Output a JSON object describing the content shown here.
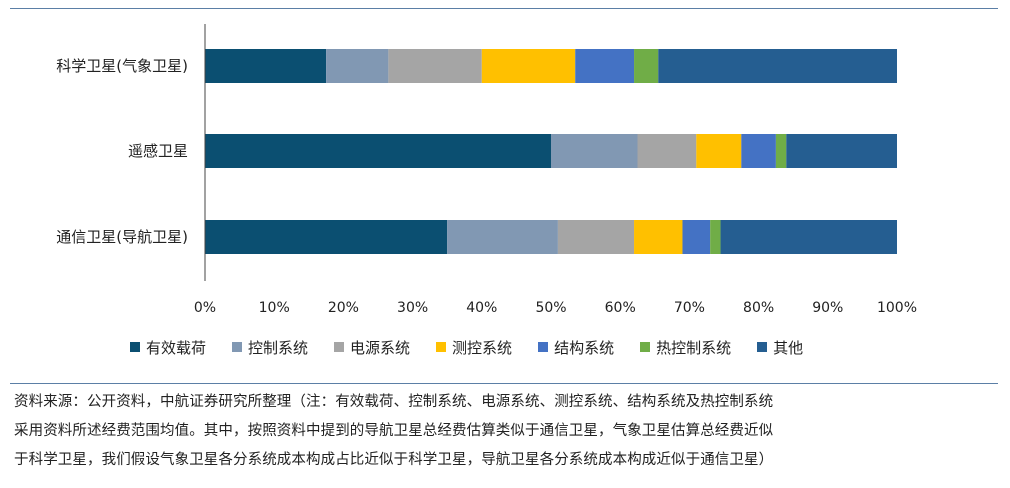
{
  "chart_data": {
    "type": "bar",
    "orientation": "horizontal",
    "stacked": true,
    "categories": [
      "科学卫星(气象卫星)",
      "遥感卫星",
      "通信卫星(导航卫星)"
    ],
    "series": [
      {
        "name": "有效载荷",
        "color": "#0b4f71",
        "values": [
          17.5,
          50.0,
          35.0
        ]
      },
      {
        "name": "控制系统",
        "color": "#8198b3",
        "values": [
          9.0,
          12.5,
          16.0
        ]
      },
      {
        "name": "电源系统",
        "color": "#a5a5a5",
        "values": [
          13.5,
          8.5,
          11.0
        ]
      },
      {
        "name": "测控系统",
        "color": "#ffc000",
        "values": [
          13.5,
          6.5,
          7.0
        ]
      },
      {
        "name": "结构系统",
        "color": "#4472c4",
        "values": [
          8.5,
          5.0,
          4.0
        ]
      },
      {
        "name": "热控制系统",
        "color": "#70ad47",
        "values": [
          3.5,
          1.5,
          1.5
        ]
      },
      {
        "name": "其他",
        "color": "#255e91",
        "values": [
          34.5,
          16.0,
          25.5
        ]
      }
    ],
    "x_ticks": [
      "0%",
      "10%",
      "20%",
      "30%",
      "40%",
      "50%",
      "60%",
      "70%",
      "80%",
      "90%",
      "100%"
    ],
    "xlim": [
      0,
      100
    ],
    "grid": false,
    "legend_position": "bottom"
  },
  "source_note": {
    "line1": "资料来源：公开资料，中航证券研究所整理（注：有效载荷、控制系统、电源系统、测控系统、结构系统及热控制系统",
    "line2": "采用资料所述经费范围均值。其中，按照资料中提到的导航卫星总经费估算类似于通信卫星，气象卫星估算总经费近似",
    "line3": "于科学卫星，我们假设气象卫星各分系统成本构成占比近似于科学卫星，导航卫星各分系统成本构成近似于通信卫星）"
  },
  "colors": {
    "rule": "#5b7fa6"
  }
}
